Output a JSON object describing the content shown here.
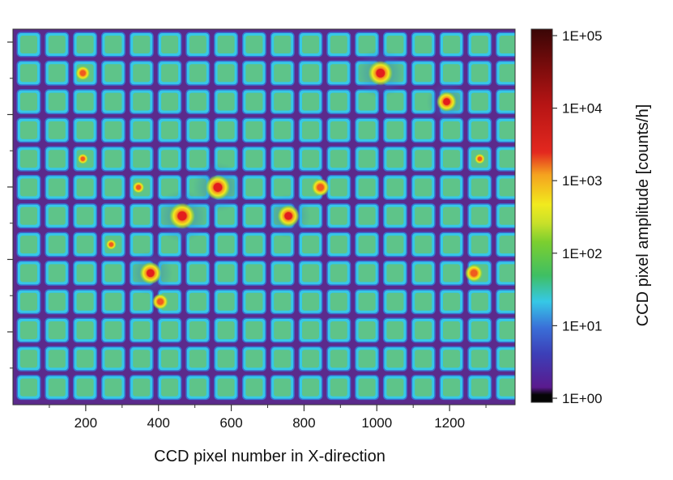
{
  "chart_data": {
    "type": "heatmap",
    "title": "",
    "xlabel": "CCD pixel number in X-direction",
    "ylabel": "",
    "xlim": [
      0,
      1380
    ],
    "x_ticks_major": [
      200,
      400,
      600,
      800,
      1000,
      1200
    ],
    "x_tick_labels": [
      "200",
      "400",
      "600",
      "800",
      "1000",
      "1200"
    ],
    "x_ticks_minor": [
      100,
      300,
      500,
      700,
      900,
      1100,
      1300
    ],
    "y_tick_count_major": 5,
    "y_tick_count_minor": 5,
    "grid_cells": {
      "columns": 18,
      "rows": 13
    },
    "colorbar": {
      "label": "CCD pixel amplitude [counts/h]",
      "scale": "log",
      "range": [
        1,
        100000
      ],
      "tick_labels": [
        "1E+05",
        "1E+04",
        "1E+03",
        "1E+02",
        "1E+01",
        "1E+00"
      ],
      "tick_values": [
        100000,
        10000,
        1000,
        100,
        10,
        1
      ],
      "colors": [
        "#050505",
        "#5a1a8e",
        "#3a4fc4",
        "#36c8e6",
        "#3fbf63",
        "#7ccf2f",
        "#f1ea1e",
        "#f5a21f",
        "#e3281f",
        "#8e0f0f",
        "#3a0606"
      ]
    },
    "hotspots": [
      {
        "x": 465,
        "row": 6,
        "counts": 20000
      },
      {
        "x": 563,
        "row": 5,
        "counts": 15000
      },
      {
        "x": 1010,
        "row": 1,
        "counts": 15000
      },
      {
        "x": 757,
        "row": 6,
        "counts": 8000
      },
      {
        "x": 378,
        "row": 8,
        "counts": 8000
      },
      {
        "x": 1192,
        "row": 2,
        "counts": 5000
      },
      {
        "x": 845,
        "row": 5,
        "counts": 3000
      },
      {
        "x": 1267,
        "row": 8,
        "counts": 3000
      },
      {
        "x": 405,
        "row": 9,
        "counts": 2000
      },
      {
        "x": 192,
        "row": 1,
        "counts": 1500
      },
      {
        "x": 345,
        "row": 5,
        "counts": 800
      },
      {
        "x": 192,
        "row": 4,
        "counts": 600
      },
      {
        "x": 1283,
        "row": 4,
        "counts": 600
      },
      {
        "x": 270,
        "row": 7,
        "counts": 600
      }
    ]
  }
}
